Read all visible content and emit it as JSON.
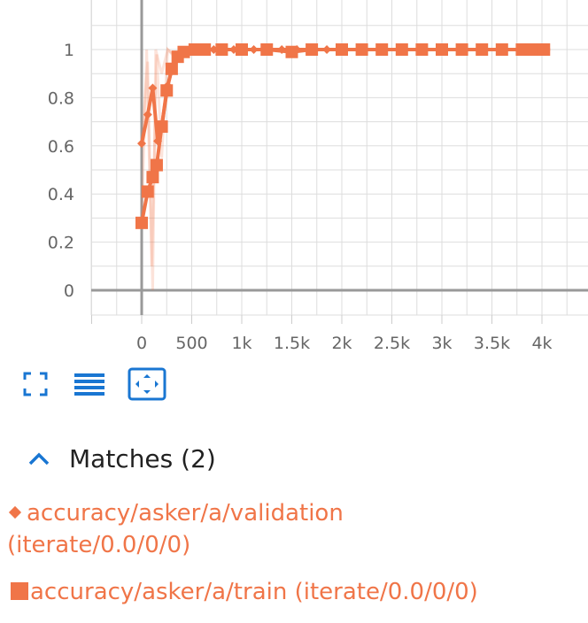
{
  "chart_data": {
    "type": "line",
    "xlim": [
      -500,
      4600
    ],
    "ylim": [
      -0.1,
      1.18
    ],
    "x_ticks": [
      0,
      500,
      1000,
      1500,
      2000,
      2500,
      3000,
      3500,
      4000
    ],
    "x_tick_labels": [
      "0",
      "500",
      "1k",
      "1.5k",
      "2k",
      "2.5k",
      "3k",
      "3.5k",
      "4k"
    ],
    "y_ticks": [
      0,
      0.2,
      0.4,
      0.6,
      0.8,
      1
    ],
    "y_tick_labels": [
      "0",
      "0.2",
      "0.4",
      "0.6",
      "0.8",
      "1"
    ],
    "grid": true,
    "series": [
      {
        "name": "accuracy/asker/a/validation (iterate/0.0/0/0)",
        "marker": "diamond",
        "color": "#f07548",
        "x": [
          0,
          60,
          110,
          160,
          200,
          260,
          310,
          380,
          430,
          520,
          620,
          720,
          820,
          920,
          1020,
          1120,
          1250,
          1400,
          1550,
          1700,
          1850,
          2000,
          2200,
          2400,
          2600,
          2800,
          3000,
          3200,
          3400,
          3600,
          3800,
          4000
        ],
        "y": [
          0.61,
          0.73,
          0.84,
          0.62,
          0.68,
          0.85,
          0.93,
          0.97,
          0.99,
          1.0,
          1.0,
          1.0,
          1.0,
          1.0,
          1.0,
          1.0,
          1.0,
          1.0,
          1.0,
          1.0,
          1.0,
          1.0,
          1.0,
          1.0,
          1.0,
          1.0,
          1.0,
          1.0,
          1.0,
          1.0,
          1.0,
          1.0
        ]
      },
      {
        "name": "accuracy/asker/a/train (iterate/0.0/0/0)",
        "marker": "square",
        "color": "#f07548",
        "x": [
          0,
          60,
          110,
          150,
          200,
          250,
          300,
          360,
          420,
          530,
          630,
          800,
          1000,
          1250,
          1500,
          1700,
          2000,
          2200,
          2400,
          2600,
          2800,
          3000,
          3200,
          3400,
          3600,
          3800,
          3900,
          4020
        ],
        "y": [
          0.28,
          0.41,
          0.47,
          0.52,
          0.68,
          0.83,
          0.92,
          0.97,
          0.99,
          1.0,
          1.0,
          1.0,
          1.0,
          1.0,
          0.99,
          1.0,
          1.0,
          1.0,
          1.0,
          1.0,
          1.0,
          1.0,
          1.0,
          1.0,
          1.0,
          1.0,
          1.0,
          1.0
        ]
      }
    ]
  },
  "colors": {
    "series": "#f07548",
    "toolbar_icon": "#1976d2",
    "chevron": "#1976d2"
  },
  "toolbar": {
    "fullscreen_icon": "fullscreen-icon",
    "log_scale_icon": "list-lines-icon",
    "fit_domain_icon": "fit-to-data-icon"
  },
  "matches": {
    "title": "Matches (2)",
    "items": [
      {
        "line1": "accuracy/asker/a/validation",
        "line2": "(iterate/0.0/0/0)"
      },
      {
        "line1": "accuracy/asker/a/train (iterate/0.0/0/0)"
      }
    ]
  }
}
